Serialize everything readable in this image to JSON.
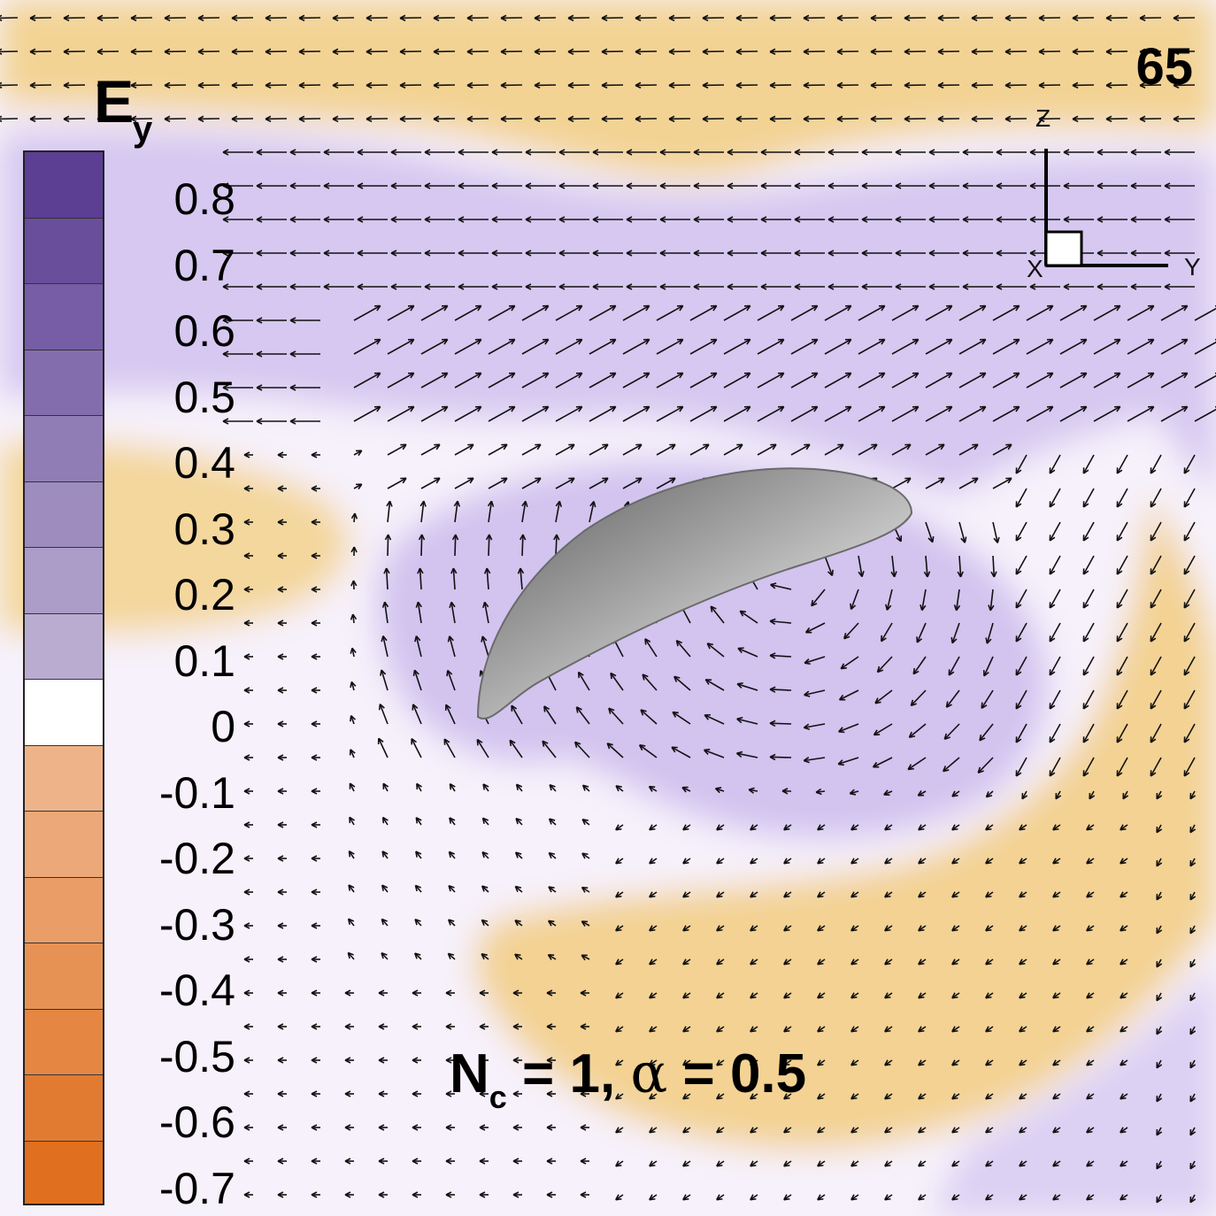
{
  "frame_number": "65",
  "colorbar": {
    "title": "E",
    "title_subscript": "y",
    "ticks": [
      "0.8",
      "0.7",
      "0.6",
      "0.5",
      "0.4",
      "0.3",
      "0.2",
      "0.1",
      "0",
      "-0.1",
      "-0.2",
      "-0.3",
      "-0.4",
      "-0.5",
      "-0.6",
      "-0.7"
    ],
    "positive_color": "#5c3e93",
    "negative_color": "#e07020",
    "zero_color": "#ffffff"
  },
  "axes_triad": {
    "z_label": "Z",
    "y_label": "Y",
    "x_label": "X"
  },
  "annotation": {
    "n_symbol": "N",
    "n_subscript": "c",
    "n_value": " = 1, ",
    "alpha_symbol": "α",
    "alpha_value": " = 0.5"
  },
  "field_colors": {
    "purple_light": "#d9cdf2",
    "purple_mid": "#c6b5ec",
    "orange_light": "#f6dca0",
    "orange_mid": "#f1c987",
    "body_gray": "#8a8a8a"
  }
}
